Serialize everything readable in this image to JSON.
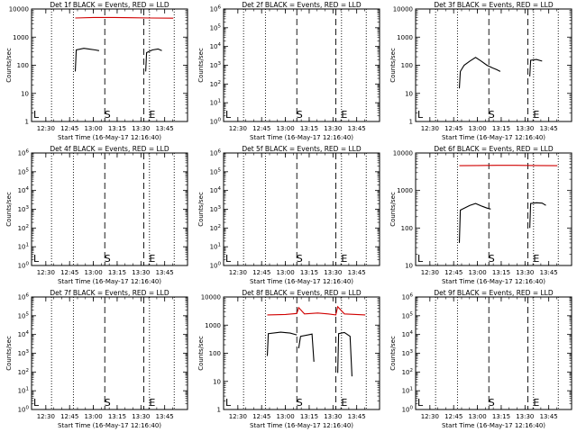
{
  "chart_data": [
    {
      "type": "line",
      "title": "Det 1f BLACK = Events, RED = LLD",
      "scale": "log",
      "y_tick_labels": [
        "1",
        "10",
        "100",
        "1000",
        "10000"
      ],
      "series": [
        {
          "name": "Events",
          "color": "#000000",
          "segments": [
            [
              [
                12.81,
                60
              ],
              [
                12.82,
                350
              ],
              [
                12.9,
                400
              ],
              [
                12.95,
                380
              ],
              [
                13.02,
                350
              ],
              [
                13.06,
                330
              ]
            ],
            [
              [
                13.55,
                60
              ],
              [
                13.56,
                280
              ],
              [
                13.62,
                350
              ],
              [
                13.68,
                380
              ],
              [
                13.72,
                330
              ]
            ]
          ]
        },
        {
          "name": "LLD",
          "color": "#d00000",
          "segments": [
            [
              [
                12.81,
                4800
              ],
              [
                13.0,
                5000
              ],
              [
                13.2,
                5000
              ],
              [
                13.4,
                4900
              ],
              [
                13.6,
                4800
              ],
              [
                13.84,
                4700
              ]
            ]
          ]
        }
      ]
    },
    {
      "type": "line",
      "title": "Det 2f BLACK = Events, RED = LLD",
      "scale": "log",
      "y_tick_labels": [
        "10^0",
        "10^1",
        "10^2",
        "10^3",
        "10^4",
        "10^5",
        "10^6"
      ],
      "series": []
    },
    {
      "type": "line",
      "title": "Det 3f BLACK = Events, RED = LLD",
      "scale": "log",
      "y_tick_labels": [
        "1",
        "10",
        "100",
        "1000",
        "10000"
      ],
      "series": [
        {
          "name": "Events",
          "color": "#000000",
          "segments": [
            [
              [
                12.81,
                15
              ],
              [
                12.82,
                60
              ],
              [
                12.86,
                100
              ],
              [
                12.92,
                140
              ],
              [
                12.98,
                190
              ],
              [
                13.04,
                140
              ],
              [
                13.1,
                100
              ],
              [
                13.16,
                80
              ],
              [
                13.2,
                70
              ],
              [
                13.24,
                60
              ]
            ],
            [
              [
                13.55,
                40
              ],
              [
                13.56,
                150
              ],
              [
                13.62,
                160
              ],
              [
                13.68,
                140
              ]
            ]
          ]
        }
      ]
    },
    {
      "type": "line",
      "title": "Det 4f BLACK = Events, RED = LLD",
      "scale": "log",
      "y_tick_labels": [
        "10^0",
        "10^1",
        "10^2",
        "10^3",
        "10^4",
        "10^5",
        "10^6"
      ],
      "series": []
    },
    {
      "type": "line",
      "title": "Det 5f BLACK = Events, RED = LLD",
      "scale": "log",
      "y_tick_labels": [
        "10^0",
        "10^1",
        "10^2",
        "10^3",
        "10^4",
        "10^5",
        "10^6"
      ],
      "series": []
    },
    {
      "type": "line",
      "title": "Det 6f BLACK = Events, RED = LLD",
      "scale": "log",
      "y_tick_labels": [
        "10",
        "100",
        "1000",
        "10000"
      ],
      "series": [
        {
          "name": "Events",
          "color": "#000000",
          "segments": [
            [
              [
                12.81,
                40
              ],
              [
                12.82,
                300
              ],
              [
                12.92,
                400
              ],
              [
                12.98,
                450
              ],
              [
                13.05,
                380
              ],
              [
                13.1,
                340
              ],
              [
                13.14,
                320
              ]
            ],
            [
              [
                13.55,
                100
              ],
              [
                13.56,
                450
              ],
              [
                13.62,
                470
              ],
              [
                13.68,
                460
              ],
              [
                13.72,
                400
              ]
            ]
          ]
        },
        {
          "name": "LLD",
          "color": "#d00000",
          "segments": [
            [
              [
                12.81,
                4600
              ],
              [
                13.0,
                4650
              ],
              [
                13.2,
                4700
              ],
              [
                13.4,
                4700
              ],
              [
                13.6,
                4650
              ],
              [
                13.84,
                4600
              ]
            ]
          ]
        }
      ]
    },
    {
      "type": "line",
      "title": "Det 7f BLACK = Events, RED = LLD",
      "scale": "log",
      "y_tick_labels": [
        "10^0",
        "10^1",
        "10^2",
        "10^3",
        "10^4",
        "10^5",
        "10^6"
      ],
      "series": []
    },
    {
      "type": "line",
      "title": "Det 8f BLACK = Events, RED = LLD",
      "scale": "log",
      "y_tick_labels": [
        "1",
        "10",
        "100",
        "1000",
        "10000"
      ],
      "series": [
        {
          "name": "Events",
          "color": "#000000",
          "segments": [
            [
              [
                12.81,
                80
              ],
              [
                12.82,
                500
              ],
              [
                12.95,
                560
              ],
              [
                13.05,
                520
              ],
              [
                13.12,
                450
              ]
            ],
            [
              [
                13.14,
                150
              ],
              [
                13.16,
                400
              ],
              [
                13.24,
                450
              ],
              [
                13.28,
                480
              ],
              [
                13.3,
                50
              ]
            ],
            [
              [
                13.55,
                20
              ],
              [
                13.56,
                500
              ],
              [
                13.62,
                550
              ],
              [
                13.68,
                400
              ],
              [
                13.7,
                15
              ]
            ]
          ]
        },
        {
          "name": "LLD",
          "color": "#d00000",
          "segments": [
            [
              [
                12.81,
                2300
              ],
              [
                13.0,
                2400
              ],
              [
                13.12,
                2600
              ],
              [
                13.14,
                4200
              ],
              [
                13.2,
                2500
              ],
              [
                13.34,
                2700
              ],
              [
                13.45,
                2500
              ],
              [
                13.53,
                2300
              ],
              [
                13.55,
                4500
              ],
              [
                13.62,
                2500
              ],
              [
                13.84,
                2300
              ]
            ]
          ]
        }
      ]
    },
    {
      "type": "line",
      "title": "Det 9f BLACK = Events, RED = LLD",
      "scale": "log",
      "y_tick_labels": [
        "10^0",
        "10^1",
        "10^2",
        "10^3",
        "10^4",
        "10^5",
        "10^6"
      ],
      "series": []
    }
  ],
  "shared": {
    "x_tick_labels": [
      "12:30",
      "12:45",
      "13:00",
      "13:15",
      "13:30",
      "13:45"
    ],
    "x_tick_values": [
      12.5,
      12.75,
      13.0,
      13.25,
      13.5,
      13.75
    ],
    "xlim": [
      12.35,
      13.99
    ],
    "dotted_lines_x": [
      12.56,
      12.79,
      13.59,
      13.85
    ],
    "dashed_lines_x": [
      13.12,
      13.53
    ],
    "marker_positions": {
      "S": 13.12,
      "E": 13.59,
      "L": 12.36
    },
    "xlabel": "Start Time (16-May-17 12:16:40)",
    "ylabel": "Counts/sec",
    "marker_start": "S",
    "marker_end": "E",
    "marker_left": "L"
  }
}
